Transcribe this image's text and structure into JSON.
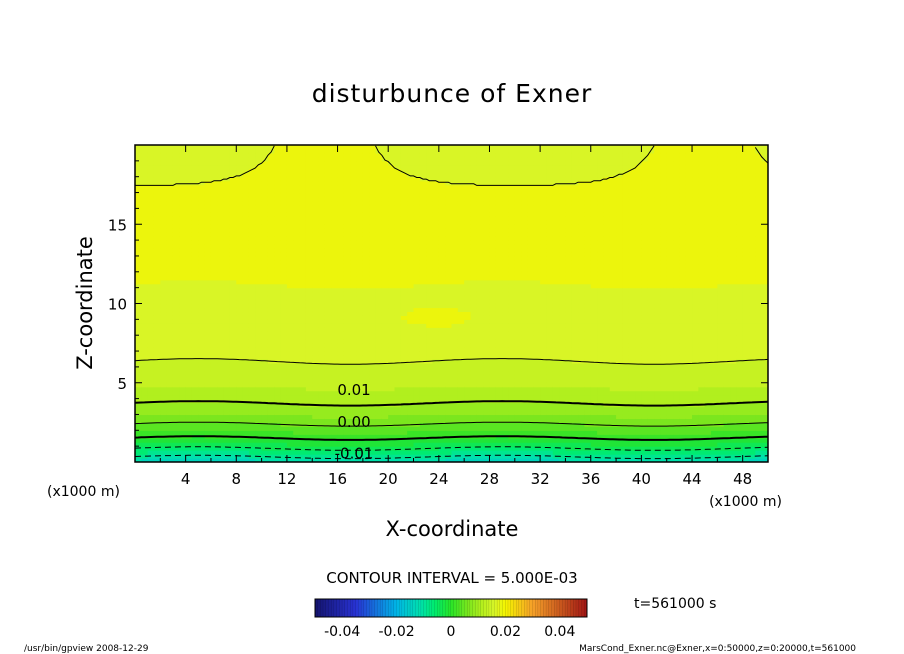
{
  "chart_data": {
    "type": "heatmap",
    "title": "disturbunce of Exner",
    "xlabel": "X-coordinate",
    "ylabel": "Z-coordinate",
    "x_unit_left": "(x1000 m)",
    "x_unit_right": "(x1000 m)",
    "xlim": [
      0,
      50
    ],
    "ylim": [
      0,
      20
    ],
    "x_ticks": [
      4,
      8,
      12,
      16,
      20,
      24,
      28,
      32,
      36,
      40,
      44,
      48
    ],
    "y_ticks": [
      5,
      10,
      15
    ],
    "contour_interval_label": "CONTOUR INTERVAL = 5.000E-03",
    "contour_labels": [
      {
        "text": "0.01",
        "x": 17.3,
        "z": 4.6
      },
      {
        "text": "0.00",
        "x": 17.3,
        "z": 2.6
      },
      {
        "text": "-0.01",
        "x": 17.3,
        "z": 0.6
      }
    ],
    "colorbar": {
      "range": [
        -0.05,
        0.05
      ],
      "ticks": [
        "-0.04",
        "-0.02",
        "0",
        "0.02",
        "0.04"
      ]
    },
    "time_label": "t=561000 s",
    "footer_left": "/usr/bin/gpview  2008-12-29",
    "footer_right": "MarsCond_Exner.nc@Exner,x=0:50000,z=0:20000,t=561000"
  }
}
